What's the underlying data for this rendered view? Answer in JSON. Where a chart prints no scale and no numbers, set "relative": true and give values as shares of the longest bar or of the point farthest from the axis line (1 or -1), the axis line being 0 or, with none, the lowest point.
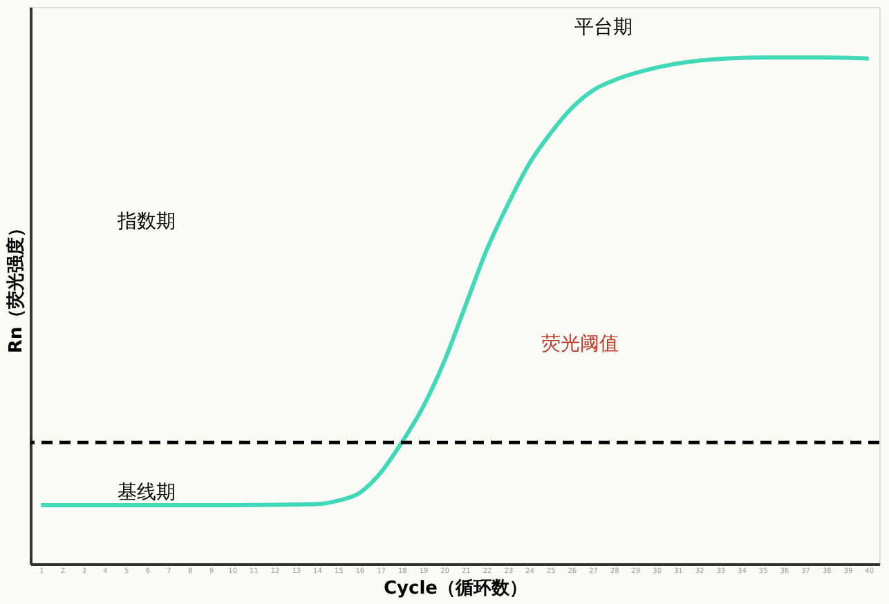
{
  "chart_data": {
    "type": "line",
    "relative": true,
    "xlabel": "Cycle（循环数）",
    "ylabel": "Rn（荧光强度）",
    "xlim": [
      0.5,
      40.5
    ],
    "xticks": [
      1,
      2,
      3,
      4,
      5,
      6,
      7,
      8,
      9,
      10,
      11,
      12,
      13,
      14,
      15,
      16,
      17,
      18,
      19,
      20,
      21,
      22,
      23,
      24,
      25,
      26,
      27,
      28,
      29,
      30,
      31,
      32,
      33,
      34,
      35,
      36,
      37,
      38,
      39,
      40
    ],
    "tick_labels": "x",
    "grid": false,
    "marker": "none",
    "line_style": "solid",
    "series": [
      {
        "color": "#3fd9b8",
        "x": [
          1,
          5,
          10,
          14,
          15,
          16,
          17,
          18,
          19,
          20,
          21,
          22,
          23,
          24,
          25,
          26,
          27,
          28,
          30,
          32,
          35,
          38,
          40
        ],
        "values": [
          0.116,
          0.116,
          0.116,
          0.118,
          0.125,
          0.14,
          0.18,
          0.24,
          0.31,
          0.4,
          0.51,
          0.62,
          0.71,
          0.79,
          0.85,
          0.9,
          0.935,
          0.955,
          0.98,
          0.994,
          1,
          1,
          0.998
        ]
      }
    ],
    "ref_lines": [
      {
        "axis": "y",
        "value": 0.24,
        "color": "#000000",
        "line_style": "dashed"
      }
    ],
    "annotations": [
      "平台期",
      "指数期",
      "荧光阈值",
      "基线期"
    ]
  }
}
